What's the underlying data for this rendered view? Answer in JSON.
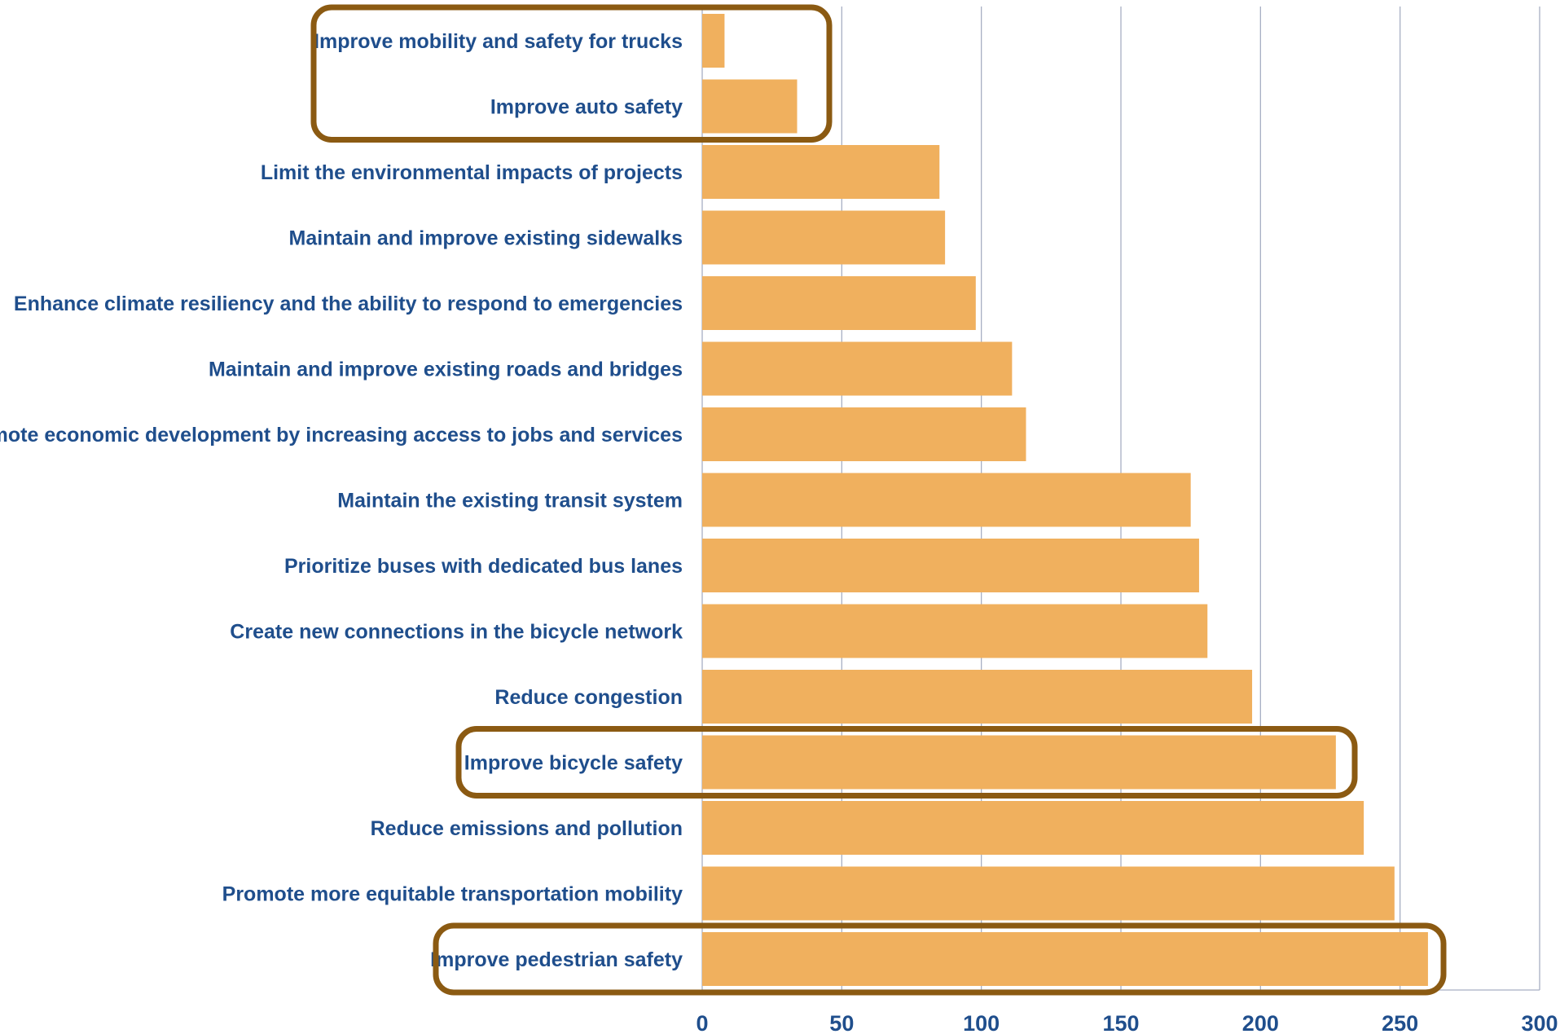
{
  "chart_data": {
    "type": "bar",
    "orientation": "horizontal",
    "categories": [
      "Improve mobility and safety for trucks",
      "Improve auto safety",
      "Limit the environmental impacts of projects",
      "Maintain and improve existing sidewalks",
      "Enhance climate resiliency and the ability to respond to emergencies",
      "Maintain and improve existing roads and bridges",
      "Promote economic development by increasing access to jobs and services",
      "Maintain the existing transit system",
      "Prioritize buses with dedicated bus lanes",
      "Create new connections in the bicycle network",
      "Reduce congestion",
      "Improve bicycle safety",
      "Reduce emissions and pollution",
      "Promote more equitable transportation mobility",
      "Improve pedestrian safety"
    ],
    "values": [
      8,
      34,
      85,
      87,
      98,
      111,
      116,
      175,
      178,
      181,
      197,
      227,
      237,
      248,
      260
    ],
    "xlim": [
      0,
      300
    ],
    "xticks": [
      "0",
      "50",
      "100",
      "150",
      "200",
      "250",
      "300"
    ],
    "grid": "vertical",
    "bar_color": "#F0B05E",
    "grid_color": "#A7AFC4",
    "label_color": "#1F4E8C",
    "highlight_color": "#8B5A12",
    "highlighted_groups": [
      [
        "Improve mobility and safety for trucks",
        "Improve auto safety"
      ],
      [
        "Improve bicycle safety"
      ],
      [
        "Improve pedestrian safety"
      ]
    ]
  }
}
